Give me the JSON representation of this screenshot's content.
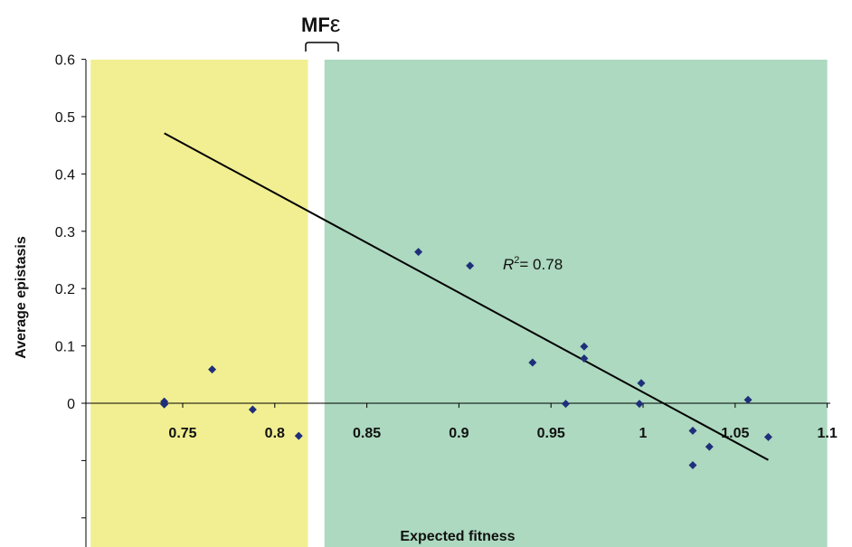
{
  "chart_data": {
    "type": "scatter",
    "title": "",
    "xlabel": "Expected fitness",
    "ylabel": "Average epistasis",
    "xlim": [
      0.7,
      1.1
    ],
    "ylim": [
      -0.3,
      0.6
    ],
    "x_ticks": [
      "0.75",
      "0.8",
      "0.85",
      "0.9",
      "0.95",
      "1",
      "1.05",
      "1.1"
    ],
    "y_ticks": [
      "0",
      "0.1",
      "0.2",
      "0.3",
      "0.4",
      "0.5",
      "0.6"
    ],
    "grid": false,
    "legend": "none",
    "bracket_label": {
      "main": "MF",
      "symbol": "ε"
    },
    "annotation": {
      "symbol": "R",
      "sup": "2",
      "text": "= 0.78"
    },
    "regions": [
      {
        "name": "yellow",
        "x_range": [
          0.7,
          0.818
        ],
        "color": "#f1ef91"
      },
      {
        "name": "green",
        "x_range": [
          0.827,
          1.1
        ],
        "color": "#acd9bf"
      }
    ],
    "trendline": {
      "x": [
        0.74,
        1.068
      ],
      "y": [
        0.471,
        -0.099
      ]
    },
    "marker_color": "#1f2f7a",
    "points": [
      {
        "x": 0.74,
        "y": 0.003
      },
      {
        "x": 0.74,
        "y": -0.002
      },
      {
        "x": 0.766,
        "y": 0.059
      },
      {
        "x": 0.788,
        "y": -0.011
      },
      {
        "x": 0.813,
        "y": -0.057
      },
      {
        "x": 0.878,
        "y": 0.264
      },
      {
        "x": 0.906,
        "y": 0.24
      },
      {
        "x": 0.94,
        "y": 0.071
      },
      {
        "x": 0.958,
        "y": -0.001
      },
      {
        "x": 0.968,
        "y": 0.099
      },
      {
        "x": 0.968,
        "y": 0.078
      },
      {
        "x": 0.998,
        "y": -0.001
      },
      {
        "x": 0.999,
        "y": 0.035
      },
      {
        "x": 1.027,
        "y": -0.048
      },
      {
        "x": 1.027,
        "y": -0.108
      },
      {
        "x": 1.036,
        "y": -0.076
      },
      {
        "x": 1.057,
        "y": 0.006
      },
      {
        "x": 1.068,
        "y": -0.059
      }
    ]
  }
}
